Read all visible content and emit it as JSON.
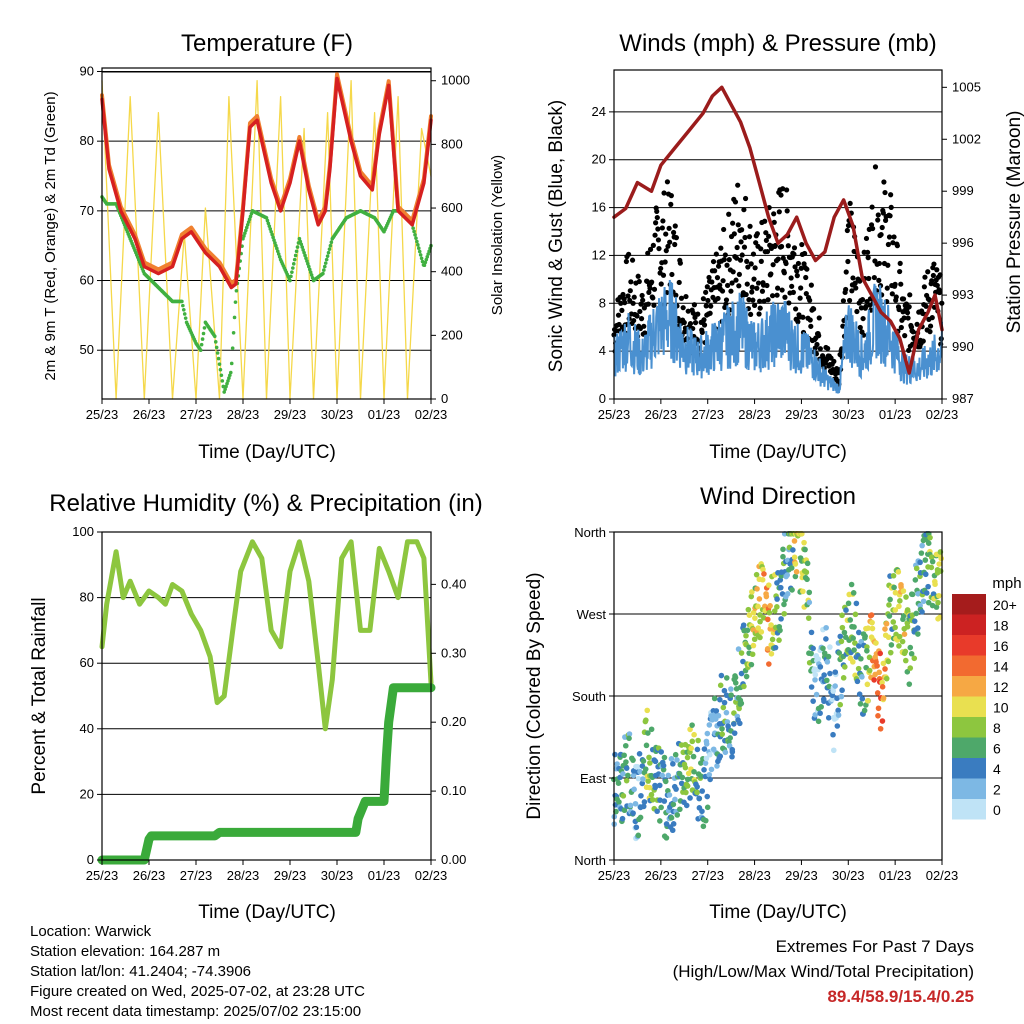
{
  "x_ticks": [
    "25/23",
    "26/23",
    "27/23",
    "28/23",
    "29/23",
    "30/23",
    "01/23",
    "02/23"
  ],
  "panels": {
    "temperature": {
      "title": "Temperature (F)",
      "xlabel": "Time (Day/UTC)",
      "ylabel_left": "2m & 9m T (Red, Orange) & 2m Td (Green)",
      "ylabel_right": "Solar Insolation (Yellow)"
    },
    "winds": {
      "title": "Winds (mph) & Pressure (mb)",
      "xlabel": "Time (Day/UTC)",
      "ylabel_left": "Sonic Wind & Gust (Blue, Black)",
      "ylabel_right": "Station Pressure (Maroon)"
    },
    "humidity": {
      "title": "Relative Humidity (%) & Precipitation (in)",
      "xlabel": "Time (Day/UTC)",
      "ylabel_left": "Percent & Total Rainfall"
    },
    "direction": {
      "title": "Wind Direction",
      "xlabel": "Time (Day/UTC)",
      "ylabel_left": "Direction (Colored By Speed)",
      "legend_title": "mph"
    }
  },
  "chart_data": [
    {
      "type": "line",
      "title": "Temperature (F)",
      "xlabel": "Time (Day/UTC)",
      "ylabel": "2m & 9m T (Red, Orange) & 2m Td (Green)",
      "y2label": "Solar Insolation (Yellow)",
      "x_ticks": [
        "25/23",
        "26/23",
        "27/23",
        "28/23",
        "29/23",
        "30/23",
        "01/23",
        "02/23"
      ],
      "xlim_days": [
        0,
        7
      ],
      "ylim": [
        43,
        90.5
      ],
      "y_ticks": [
        50,
        60,
        70,
        80,
        90
      ],
      "y2lim": [
        0,
        1040
      ],
      "y2_ticks": [
        0,
        200,
        400,
        600,
        800,
        1000
      ],
      "grid": "horizontal",
      "colors": {
        "t2m": "#d62020",
        "t9m": "#f08030",
        "td": "#40b040",
        "solar": "#f5d84a"
      },
      "series": [
        {
          "name": "2m & 9m T (Red, Orange)",
          "x": [
            0,
            0.15,
            0.4,
            0.7,
            0.9,
            1.2,
            1.5,
            1.7,
            1.9,
            2.2,
            2.5,
            2.75,
            2.85,
            3.0,
            3.15,
            3.3,
            3.6,
            3.8,
            4.0,
            4.2,
            4.4,
            4.6,
            4.75,
            4.85,
            5.0,
            5.3,
            5.5,
            5.75,
            5.9,
            6.1,
            6.3,
            6.6,
            6.85,
            7.0
          ],
          "y": [
            86,
            76,
            70,
            66,
            62,
            61,
            62,
            66,
            67,
            64,
            62,
            59,
            59.5,
            70,
            82,
            83,
            74,
            70,
            74,
            80,
            73,
            68,
            70,
            76,
            89,
            80,
            75,
            73,
            81,
            88,
            70,
            68,
            74,
            83
          ]
        },
        {
          "name": "2m Td (Green)",
          "x": [
            0,
            0.1,
            0.3,
            0.6,
            0.9,
            1.2,
            1.5,
            1.7,
            1.8,
            2.0,
            2.1,
            2.2,
            2.4,
            2.6,
            2.75,
            2.85,
            3.0,
            3.2,
            3.5,
            3.8,
            4.0,
            4.2,
            4.5,
            4.7,
            4.9,
            5.2,
            5.5,
            5.8,
            6.0,
            6.2,
            6.4,
            6.6,
            6.85,
            7.0
          ],
          "y": [
            72,
            71,
            71,
            66,
            61,
            59,
            57,
            57,
            54,
            51,
            50,
            54,
            52,
            44,
            47,
            58,
            66,
            70,
            69,
            63,
            60,
            66,
            60,
            61,
            66,
            69,
            70,
            69,
            67,
            70,
            70,
            68,
            62,
            65
          ]
        },
        {
          "name": "Solar Insolation (Yellow)",
          "x": [
            0,
            0.3,
            0.6,
            0.9,
            1.2,
            1.5,
            1.75,
            2.0,
            2.2,
            2.5,
            2.7,
            3.0,
            3.3,
            3.5,
            3.8,
            4.0,
            4.3,
            4.5,
            4.8,
            5.0,
            5.3,
            5.5,
            5.8,
            6.0,
            6.3,
            6.5,
            6.8,
            7.0
          ],
          "y": [
            1000,
            0,
            950,
            0,
            900,
            0,
            520,
            0,
            600,
            0,
            950,
            0,
            1000,
            0,
            950,
            0,
            850,
            0,
            900,
            0,
            1000,
            0,
            900,
            0,
            950,
            0,
            850,
            700
          ]
        }
      ]
    },
    {
      "type": "scatter",
      "title": "Winds (mph) & Pressure (mb)",
      "xlabel": "Time (Day/UTC)",
      "ylabel": "Sonic Wind & Gust (Blue, Black)",
      "y2label": "Station Pressure (Maroon)",
      "x_ticks": [
        "25/23",
        "26/23",
        "27/23",
        "28/23",
        "29/23",
        "30/23",
        "01/23",
        "02/23"
      ],
      "ylim": [
        0,
        27.5
      ],
      "y_ticks": [
        0,
        4,
        8,
        12,
        16,
        20,
        24
      ],
      "y2lim": [
        987,
        1006
      ],
      "y2_ticks": [
        987,
        990,
        993,
        996,
        999,
        1002,
        1005
      ],
      "grid": "horizontal",
      "colors": {
        "wind": "#4a90d0",
        "gust": "#000000",
        "pressure": "#9b1c1c"
      },
      "series": [
        {
          "name": "Sonic Wind (Blue)",
          "x": [
            0,
            0.3,
            0.6,
            0.9,
            1.2,
            1.5,
            1.8,
            2.1,
            2.4,
            2.7,
            3.0,
            3.3,
            3.6,
            3.9,
            4.2,
            4.5,
            4.8,
            5.0,
            5.3,
            5.6,
            5.9,
            6.2,
            6.5,
            6.8,
            7.0
          ],
          "y": [
            4,
            6,
            4,
            7,
            8,
            5,
            4,
            5,
            6,
            7,
            5,
            6,
            7,
            5,
            4,
            2,
            1,
            7,
            4,
            8,
            6,
            3,
            3,
            4,
            5
          ]
        },
        {
          "name": "Gust (Black)",
          "x": [
            0,
            0.3,
            0.6,
            0.9,
            1.2,
            1.5,
            1.8,
            2.1,
            2.4,
            2.7,
            3.0,
            3.3,
            3.6,
            3.9,
            4.2,
            4.5,
            4.8,
            5.0,
            5.3,
            5.6,
            5.9,
            6.2,
            6.5,
            6.8,
            7.0
          ],
          "y": [
            6,
            10,
            8,
            13,
            15,
            8,
            6,
            9,
            12,
            16,
            11,
            13,
            15,
            12,
            8,
            4,
            2,
            14,
            9,
            16,
            14,
            7,
            7,
            10,
            8
          ]
        },
        {
          "name": "Station Pressure (Maroon)",
          "x": [
            0,
            0.25,
            0.5,
            0.8,
            1.0,
            1.3,
            1.6,
            1.9,
            2.1,
            2.3,
            2.5,
            2.7,
            2.9,
            3.1,
            3.3,
            3.5,
            3.7,
            3.9,
            4.1,
            4.3,
            4.5,
            4.7,
            4.9,
            5.1,
            5.3,
            5.5,
            5.7,
            5.9,
            6.1,
            6.3,
            6.5,
            6.7,
            6.85,
            7.0
          ],
          "y": [
            997.5,
            998,
            999.5,
            999,
            1000.5,
            1001.5,
            1002.5,
            1003.5,
            1004.5,
            1005,
            1004,
            1003,
            1001.5,
            999.5,
            997.5,
            996,
            996.5,
            997.5,
            996,
            995,
            995.5,
            997.5,
            998.5,
            997,
            994,
            993,
            992,
            991.5,
            990.5,
            988.5,
            991,
            992,
            993,
            991
          ]
        }
      ]
    },
    {
      "type": "line",
      "title": "Relative Humidity (%) & Precipitation (in)",
      "xlabel": "Time (Day/UTC)",
      "ylabel": "Percent & Total Rainfall",
      "x_ticks": [
        "25/23",
        "26/23",
        "27/23",
        "28/23",
        "29/23",
        "30/23",
        "01/23",
        "02/23"
      ],
      "ylim": [
        0,
        100
      ],
      "y_ticks": [
        0,
        20,
        40,
        60,
        80,
        100
      ],
      "y2lim": [
        0,
        0.476
      ],
      "y2_ticks": [
        "0.00",
        "0.10",
        "0.20",
        "0.30",
        "0.40"
      ],
      "grid": "horizontal",
      "colors": {
        "rh": "#8dc63f",
        "precip": "#3aaa3a"
      },
      "series": [
        {
          "name": "Relative Humidity",
          "x": [
            0,
            0.1,
            0.3,
            0.45,
            0.6,
            0.8,
            1.0,
            1.2,
            1.35,
            1.5,
            1.7,
            1.9,
            2.1,
            2.3,
            2.45,
            2.6,
            2.8,
            2.95,
            3.2,
            3.4,
            3.6,
            3.8,
            4.0,
            4.2,
            4.4,
            4.6,
            4.75,
            4.9,
            5.1,
            5.3,
            5.5,
            5.7,
            5.9,
            6.1,
            6.3,
            6.5,
            6.7,
            6.85,
            7.0
          ],
          "y": [
            65,
            78,
            94,
            80,
            85,
            78,
            82,
            80,
            78,
            84,
            82,
            75,
            70,
            62,
            48,
            50,
            72,
            88,
            97,
            92,
            70,
            65,
            88,
            97,
            85,
            60,
            40,
            55,
            92,
            97,
            70,
            70,
            95,
            88,
            80,
            97,
            97,
            92,
            54
          ]
        },
        {
          "name": "Total Precipitation",
          "x": [
            0,
            0.9,
            1.0,
            1.05,
            2.4,
            2.5,
            5.4,
            5.45,
            5.6,
            6.0,
            6.05,
            6.1,
            6.2,
            7.0
          ],
          "y": [
            0,
            0,
            0.03,
            0.035,
            0.035,
            0.04,
            0.04,
            0.06,
            0.085,
            0.085,
            0.15,
            0.2,
            0.25,
            0.25
          ]
        }
      ]
    },
    {
      "type": "scatter",
      "title": "Wind Direction",
      "xlabel": "Time (Day/UTC)",
      "ylabel": "Direction (Colored By Speed)",
      "x_ticks": [
        "25/23",
        "26/23",
        "27/23",
        "28/23",
        "29/23",
        "30/23",
        "01/23",
        "02/23"
      ],
      "y_categories": [
        "North",
        "East",
        "South",
        "West",
        "North"
      ],
      "ylim_deg": [
        0,
        360
      ],
      "grid": "horizontal",
      "legend": {
        "title": "mph",
        "position": "right",
        "labels": [
          "20+",
          "18",
          "16",
          "14",
          "12",
          "10",
          "8",
          "6",
          "4",
          "2",
          "0"
        ],
        "colors": [
          "#a51c1c",
          "#cc2222",
          "#e83a2a",
          "#f26a30",
          "#f6a844",
          "#e9e050",
          "#8dc63f",
          "#4ea86a",
          "#3a7cc0",
          "#7db8e4",
          "#bfe3f6"
        ]
      },
      "series": [
        {
          "name": "Direction",
          "x": [
            0.1,
            0.3,
            0.5,
            0.7,
            0.9,
            1.1,
            1.3,
            1.5,
            1.7,
            1.9,
            2.1,
            2.3,
            2.5,
            2.7,
            2.9,
            3.1,
            3.3,
            3.5,
            3.7,
            3.9,
            4.1,
            4.3,
            4.5,
            4.7,
            4.9,
            5.1,
            5.3,
            5.5,
            5.7,
            5.9,
            6.1,
            6.3,
            6.5,
            6.7,
            6.9
          ],
          "y": [
            75,
            100,
            60,
            120,
            90,
            65,
            80,
            95,
            110,
            70,
            130,
            160,
            150,
            200,
            250,
            290,
            260,
            280,
            330,
            350,
            300,
            180,
            220,
            160,
            240,
            260,
            200,
            230,
            180,
            270,
            280,
            230,
            300,
            330,
            300
          ],
          "speed": [
            4,
            6,
            2,
            8,
            6,
            4,
            3,
            6,
            8,
            4,
            2,
            6,
            4,
            5,
            8,
            10,
            12,
            6,
            4,
            10,
            8,
            2,
            4,
            2,
            6,
            8,
            4,
            12,
            14,
            6,
            10,
            8,
            4,
            6,
            8
          ]
        }
      ]
    }
  ],
  "info": {
    "location": "Location: Warwick",
    "elevation": "Station elevation: 164.287 m",
    "latlon": "Station lat/lon: 41.2404; -74.3906",
    "created": "Figure created on Wed, 2025-07-02, at 23:28 UTC",
    "recent": "Most recent data timestamp: 2025/07/02 23:15:00"
  },
  "extremes": {
    "title": "Extremes For Past 7 Days",
    "subtitle": "(High/Low/Max Wind/Total Precipitation)",
    "values": "89.4/58.9/15.4/0.25"
  }
}
